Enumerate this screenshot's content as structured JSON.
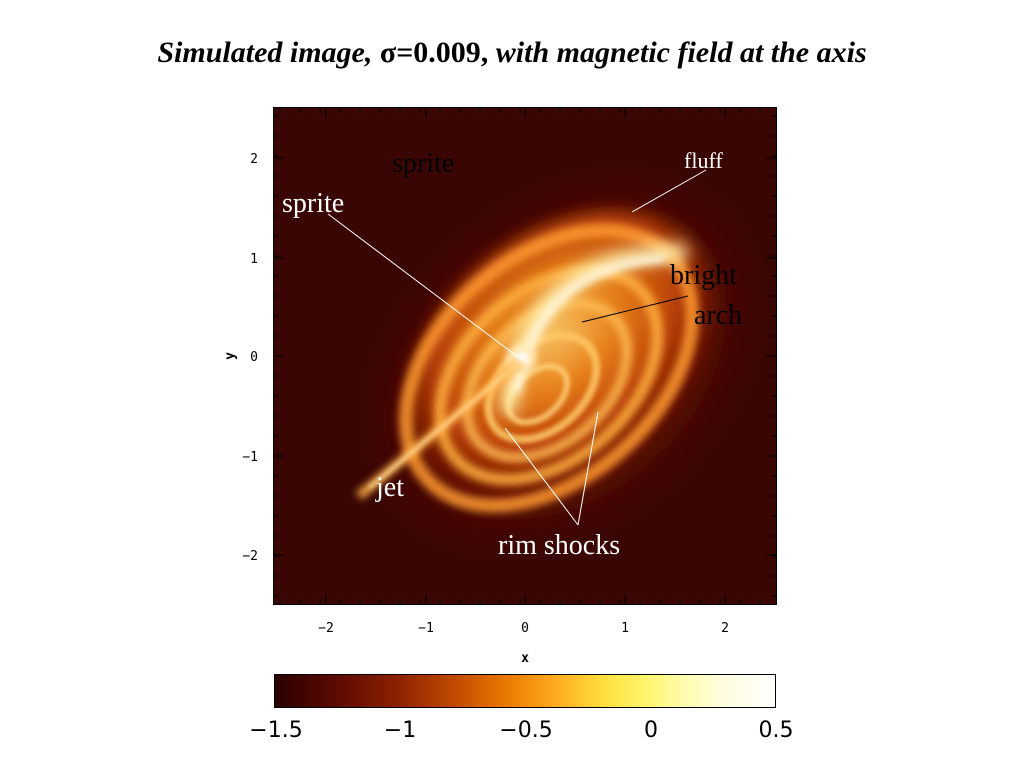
{
  "title": {
    "part1": "Simulated image, ",
    "sigma": "σ=0.009,",
    "part2": " with magnetic field at the axis"
  },
  "axes": {
    "xlabel": "x",
    "ylabel": "y",
    "xticks": [
      "−2",
      "−1",
      "0",
      "1",
      "2"
    ],
    "yticks": [
      "2",
      "1",
      "0",
      "−1",
      "−2"
    ]
  },
  "annotations": {
    "sprite_top": "sprite",
    "sprite_left": "sprite",
    "fluff": "fluff",
    "bright": "bright",
    "arch": "arch",
    "jet": "jet",
    "rim_shocks": "rim shocks"
  },
  "colorbar": {
    "ticks": [
      "−1.5",
      "−1",
      "−0.5",
      "0",
      "0.5"
    ]
  }
}
